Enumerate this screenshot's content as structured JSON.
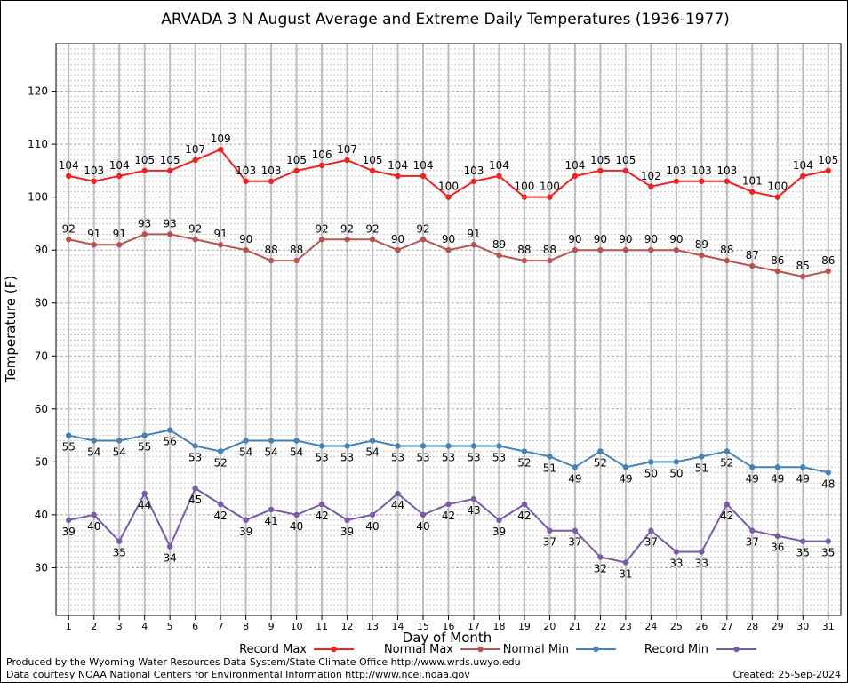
{
  "chart_data": {
    "type": "line",
    "title": "ARVADA 3 N August Average and Extreme Daily Temperatures (1936-1977)",
    "xlabel": "Day of Month",
    "ylabel": "Temperature (F)",
    "x": [
      1,
      2,
      3,
      4,
      5,
      6,
      7,
      8,
      9,
      10,
      11,
      12,
      13,
      14,
      15,
      16,
      17,
      18,
      19,
      20,
      21,
      22,
      23,
      24,
      25,
      26,
      27,
      28,
      29,
      30,
      31
    ],
    "xlim": [
      0.5,
      31.5
    ],
    "ylim": [
      21,
      129
    ],
    "y_ticks": [
      30,
      40,
      50,
      60,
      70,
      80,
      90,
      100,
      110,
      120
    ],
    "grid": true,
    "legend_position": "bottom",
    "series": [
      {
        "name": "Record Max",
        "color": "#ee2222",
        "label_position": "above",
        "values": [
          104,
          103,
          104,
          105,
          105,
          107,
          109,
          103,
          103,
          105,
          106,
          107,
          105,
          104,
          104,
          100,
          103,
          104,
          100,
          100,
          104,
          105,
          105,
          102,
          103,
          103,
          103,
          101,
          100,
          104,
          105
        ]
      },
      {
        "name": "Normal Max",
        "color": "#b85450",
        "label_position": "above",
        "values": [
          92,
          91,
          91,
          93,
          93,
          92,
          91,
          90,
          88,
          88,
          92,
          92,
          92,
          90,
          92,
          90,
          91,
          89,
          88,
          88,
          90,
          90,
          90,
          90,
          90,
          89,
          88,
          87,
          86,
          85,
          86
        ]
      },
      {
        "name": "Normal Min",
        "color": "#4682b4",
        "label_position": "below",
        "values": [
          55,
          54,
          54,
          55,
          56,
          53,
          52,
          54,
          54,
          54,
          53,
          53,
          54,
          53,
          53,
          53,
          53,
          53,
          52,
          51,
          49,
          52,
          49,
          50,
          50,
          51,
          52,
          49,
          49,
          49,
          48
        ]
      },
      {
        "name": "Record Min",
        "color": "#7b5aa6",
        "label_position": "below",
        "values": [
          39,
          40,
          35,
          44,
          34,
          45,
          42,
          39,
          41,
          40,
          42,
          39,
          40,
          44,
          40,
          42,
          43,
          39,
          42,
          37,
          37,
          32,
          31,
          37,
          33,
          33,
          42,
          37,
          36,
          35,
          35
        ]
      }
    ]
  },
  "footer": {
    "credit_line1": "Produced by the Wyoming Water Resources Data System/State Climate Office http://www.wrds.uwyo.edu",
    "credit_line2": "Data courtesy NOAA National Centers for Environmental Information http://www.ncei.noaa.gov",
    "created": "Created:  25-Sep-2024"
  }
}
